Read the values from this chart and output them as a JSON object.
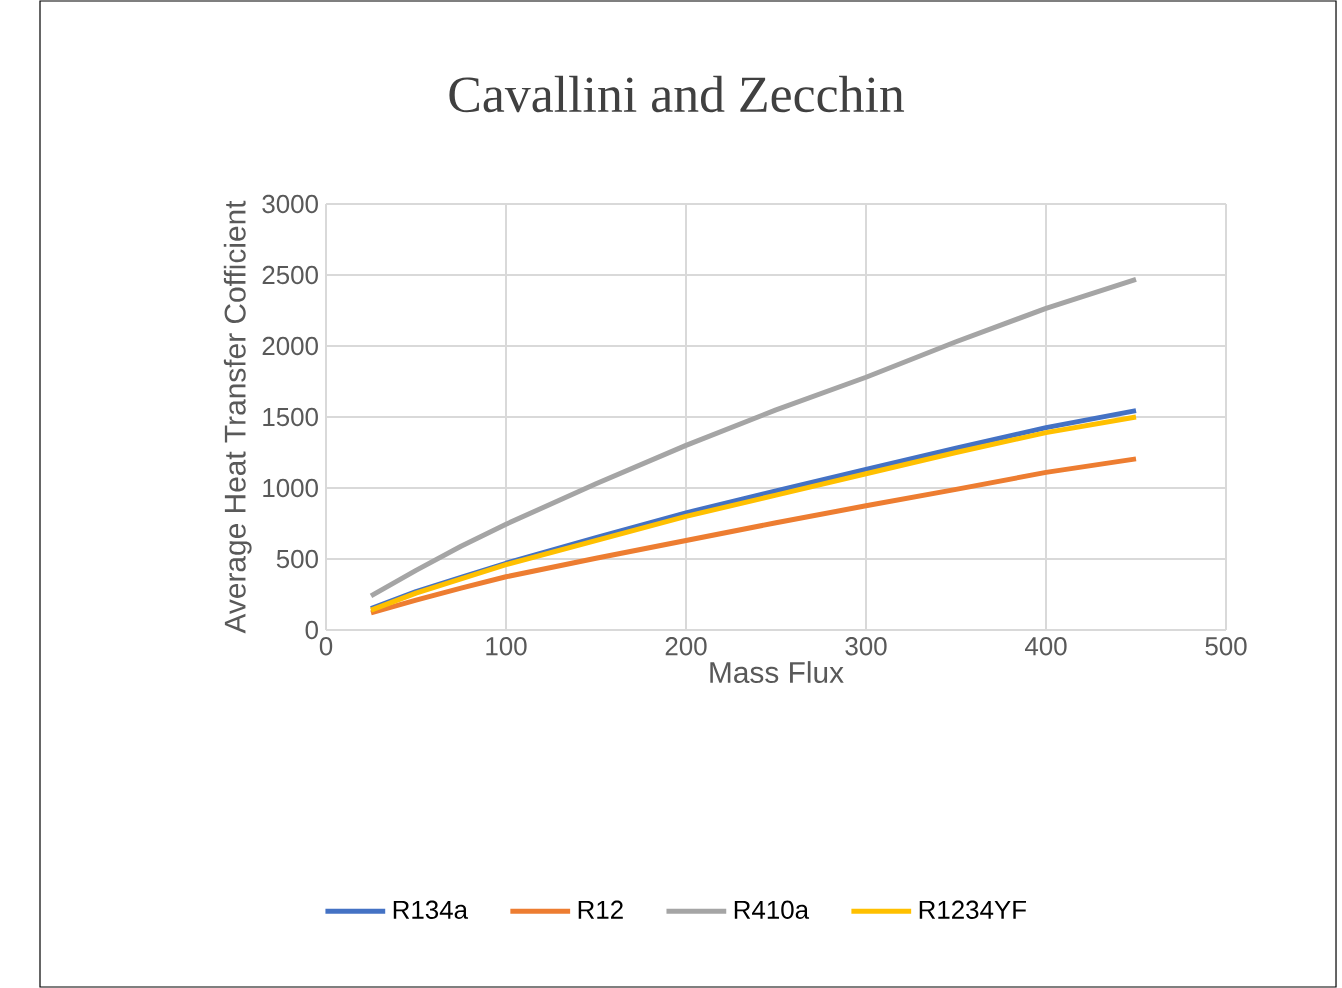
{
  "chart_data": {
    "type": "line",
    "title": "Cavallini and Zecchin",
    "xlabel": "Mass Flux",
    "ylabel": "Average Heat Transfer Cofficient",
    "x": [
      25,
      50,
      75,
      100,
      150,
      200,
      250,
      300,
      350,
      400,
      450
    ],
    "series": [
      {
        "name": "R134a",
        "color": "#4472c4",
        "values": [
          150,
          270,
          370,
          470,
          650,
          825,
          980,
          1130,
          1280,
          1425,
          1545
        ]
      },
      {
        "name": "R12",
        "color": "#ed7d31",
        "values": [
          120,
          210,
          295,
          375,
          505,
          630,
          755,
          875,
          990,
          1110,
          1205
        ]
      },
      {
        "name": "R410a",
        "color": "#a5a5a5",
        "values": [
          240,
          420,
          590,
          745,
          1030,
          1300,
          1550,
          1780,
          2030,
          2265,
          2470
        ]
      },
      {
        "name": "R1234YF",
        "color": "#ffc000",
        "values": [
          140,
          260,
          360,
          460,
          630,
          800,
          950,
          1100,
          1250,
          1390,
          1500
        ]
      }
    ],
    "xlim": [
      0,
      500
    ],
    "xticks": [
      0,
      100,
      200,
      300,
      400,
      500
    ],
    "ylim": [
      0,
      3000
    ],
    "yticks": [
      0,
      500,
      1000,
      1500,
      2000,
      2500,
      3000
    ],
    "grid": true,
    "legend": "bottom",
    "marker": "none",
    "line_style": "solid"
  }
}
